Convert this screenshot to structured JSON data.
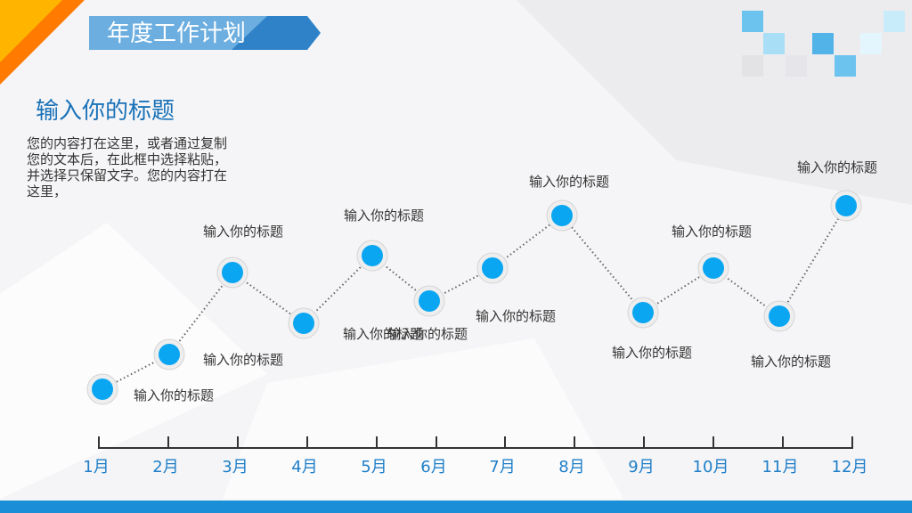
{
  "header": {
    "title": "年度工作计划"
  },
  "section": {
    "heading": "输入你的标题",
    "body": [
      "您的内容打在这里，或者通过复制",
      "您的文本后，在此框中选择粘贴，",
      "并选择只保留文字。您的内容打在",
      "这里，"
    ]
  },
  "timeline": {
    "months": [
      "1月",
      "2月",
      "3月",
      "4月",
      "5月",
      "6月",
      "7月",
      "8月",
      "9月",
      "10月",
      "11月",
      "12月"
    ],
    "nodes": [
      {
        "label": "输入你的标题"
      },
      {
        "label": "输入你的标题"
      },
      {
        "label": "输入你的标题"
      },
      {
        "label": "输入你的标题"
      },
      {
        "label": "输入你的标题"
      },
      {
        "label": "输入你的标题"
      },
      {
        "label": "输入你的标题"
      },
      {
        "label": "输入你的标题"
      },
      {
        "label": "输入你的标题"
      },
      {
        "label": "输入你的标题"
      },
      {
        "label": "输入你的标题"
      },
      {
        "label": "输入你的标题"
      }
    ]
  }
}
